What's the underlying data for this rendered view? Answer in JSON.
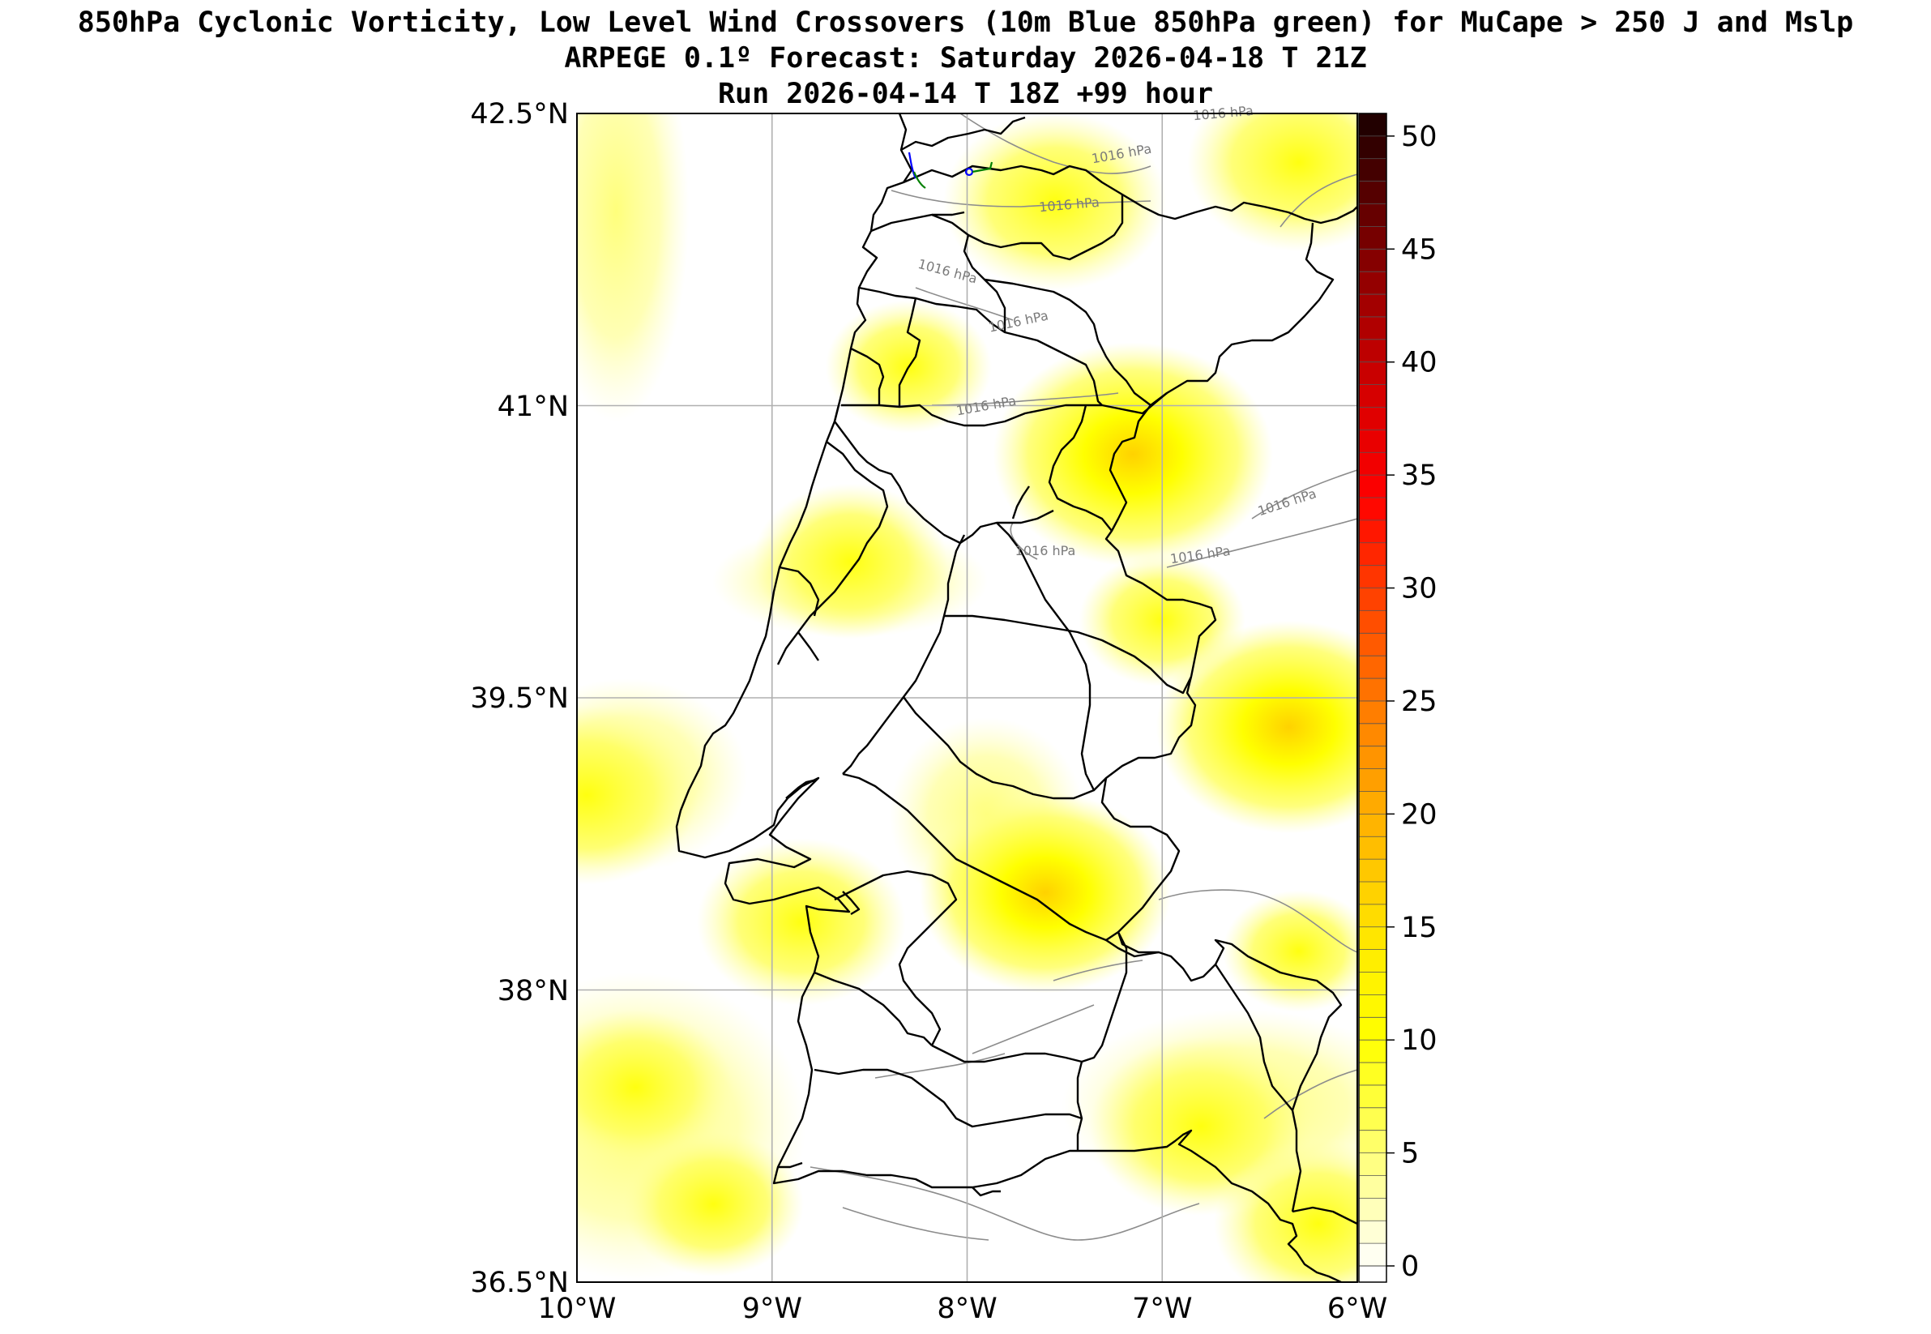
{
  "title": {
    "line1": "850hPa Cyclonic Vorticity, Low Level Wind Crossovers (10m Blue 850hPa green) for MuCape > 250 J and Mslp",
    "line2": "ARPEGE 0.1º Forecast: Saturday 2026-04-18 T 21Z",
    "line3": "Run 2026-04-14 T 18Z +99 hour"
  },
  "map": {
    "region": "Portugal",
    "lon_range": [
      -10,
      -6
    ],
    "lat_range": [
      36.5,
      42.5
    ],
    "lat_ticks": [
      {
        "value": 42.5,
        "label": "42.5°N"
      },
      {
        "value": 41,
        "label": "41°N"
      },
      {
        "value": 39.5,
        "label": "39.5°N"
      },
      {
        "value": 38,
        "label": "38°N"
      },
      {
        "value": 36.5,
        "label": "36.5°N"
      }
    ],
    "lon_ticks": [
      {
        "value": -10,
        "label": "10°W"
      },
      {
        "value": -9,
        "label": "9°W"
      },
      {
        "value": -8,
        "label": "8°W"
      },
      {
        "value": -7,
        "label": "7°W"
      },
      {
        "value": -6,
        "label": "6°W"
      }
    ],
    "grid": true,
    "isobar_label": "1016 hPa",
    "isobar_label_count": 9,
    "colors": {
      "field_light": "#ffff88",
      "field_mid": "#ffff00",
      "field_strong": "#ffd700",
      "isobar": "#8c8c8c",
      "boundary": "#000000",
      "wind_10m": "#0000ff",
      "wind_850": "#008000"
    },
    "blobs": [
      {
        "lon": -7.15,
        "lat": 40.75,
        "level": 14
      },
      {
        "lon": -6.35,
        "lat": 39.35,
        "level": 13
      },
      {
        "lon": -7.6,
        "lat": 38.5,
        "level": 12
      },
      {
        "lon": -7.55,
        "lat": 42.05,
        "level": 10
      },
      {
        "lon": -6.3,
        "lat": 42.25,
        "level": 10
      },
      {
        "lon": -9.95,
        "lat": 39.0,
        "level": 10
      },
      {
        "lon": -8.85,
        "lat": 38.35,
        "level": 9
      },
      {
        "lon": -8.6,
        "lat": 40.2,
        "level": 8
      },
      {
        "lon": -6.8,
        "lat": 37.3,
        "level": 10
      },
      {
        "lon": -6.2,
        "lat": 36.8,
        "level": 9
      },
      {
        "lon": -9.7,
        "lat": 37.5,
        "level": 8
      },
      {
        "lon": -9.3,
        "lat": 36.9,
        "level": 7
      },
      {
        "lon": -8.3,
        "lat": 41.2,
        "level": 6
      },
      {
        "lon": -7.0,
        "lat": 39.9,
        "level": 6
      },
      {
        "lon": -6.3,
        "lat": 38.2,
        "level": 5
      }
    ]
  },
  "colorbar": {
    "min": 0,
    "max": 50,
    "step": 1,
    "ticks": [
      0,
      5,
      10,
      15,
      20,
      25,
      30,
      35,
      40,
      45,
      50
    ],
    "tick_labels": [
      "0",
      "5",
      "10",
      "15",
      "20",
      "25",
      "30",
      "35",
      "40",
      "45",
      "50"
    ]
  }
}
